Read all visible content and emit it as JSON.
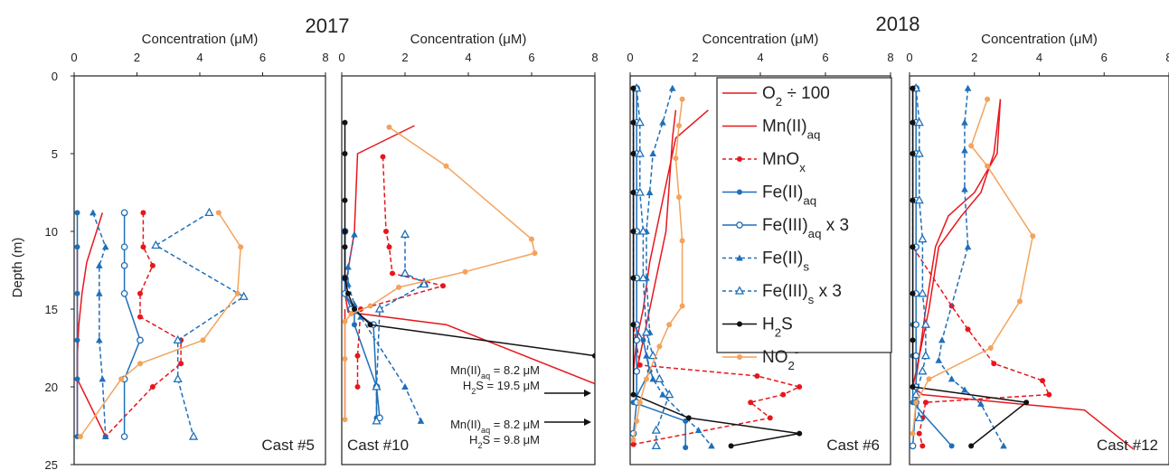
{
  "figure": {
    "years": [
      "2017",
      "2018"
    ],
    "y_axis_title": "Depth (m)",
    "x_axis_title": "Concentration (μM)",
    "sub_suffix": {
      "aq": "aq",
      "s": "s"
    }
  },
  "legend": {
    "items": [
      {
        "key": "o2",
        "base": "O",
        "sub": "2",
        "suffix": " ÷ 100",
        "color": "#e8161b",
        "dash": false,
        "marker": "none"
      },
      {
        "key": "mn",
        "base": "Mn(II)",
        "sub": "aq",
        "suffix": "",
        "color": "#e8161b",
        "dash": false,
        "marker": "none"
      },
      {
        "key": "mnox",
        "base": "MnO",
        "sub": "x",
        "suffix": "",
        "color": "#e8161b",
        "dash": true,
        "marker": "dot"
      },
      {
        "key": "fe2aq",
        "base": "Fe(II)",
        "sub": "aq",
        "suffix": "",
        "color": "#1f6fb8",
        "dash": false,
        "marker": "dot"
      },
      {
        "key": "fe3aq",
        "base": "Fe(III)",
        "sub": "aq",
        "suffix": " x 3",
        "color": "#1f6fb8",
        "dash": false,
        "marker": "opencircle"
      },
      {
        "key": "fe2s",
        "base": "Fe(II)",
        "sub": "s",
        "suffix": "",
        "color": "#1f6fb8",
        "dash": true,
        "marker": "triangle"
      },
      {
        "key": "fe3s",
        "base": "Fe(III)",
        "sub": "s",
        "suffix": " x 3",
        "color": "#1f6fb8",
        "dash": true,
        "marker": "opentriangle"
      },
      {
        "key": "h2s",
        "base": "H",
        "sub": "2",
        "suffix": "S",
        "color": "#111111",
        "dash": false,
        "marker": "dot"
      },
      {
        "key": "no2",
        "base": "NO",
        "sub": "2",
        "suffix": "",
        "sup": "-",
        "color": "#f3a35c",
        "dash": false,
        "marker": "dot"
      }
    ]
  },
  "annotations": [
    {
      "panel": 1,
      "lines": [
        [
          "Mn(II)",
          "aq",
          " = 8.2 μM"
        ],
        [
          "H",
          "2",
          "S = 19.5 μM"
        ]
      ]
    },
    {
      "panel": 1,
      "lines": [
        [
          "Mn(II)",
          "aq",
          " = 8.2 μM"
        ],
        [
          "H",
          "2",
          "S = 9.8 μM"
        ]
      ]
    }
  ],
  "chart_data": [
    {
      "type": "line",
      "cast_label": "Cast #5",
      "x_ticks": [
        "0",
        "2",
        "4",
        "6",
        "8"
      ],
      "y_ticks": [
        "0",
        "5",
        "10",
        "15",
        "20",
        "25"
      ],
      "xlim": [
        0,
        8
      ],
      "ylim": [
        0,
        25
      ],
      "series": [
        {
          "key": "o2",
          "x": [
            0.9,
            0.4,
            0.25,
            0.15,
            0.1,
            0.1,
            0.1
          ],
          "y": [
            8.8,
            12,
            14,
            16,
            18,
            20,
            23.2
          ]
        },
        {
          "key": "mn",
          "x": [
            0.1,
            0.1,
            0.1,
            0.1,
            1.0
          ],
          "y": [
            11,
            14,
            17,
            19.5,
            23.2
          ]
        },
        {
          "key": "mnox",
          "x": [
            2.2,
            2.2,
            2.5,
            2.1,
            2.1,
            3.4,
            3.4,
            2.5,
            1.0
          ],
          "y": [
            8.8,
            11,
            12.2,
            14,
            15.5,
            17,
            18.5,
            20,
            23.2
          ]
        },
        {
          "key": "fe2aq",
          "x": [
            0.1,
            0.1,
            0.1,
            0.1,
            0.1,
            0.1
          ],
          "y": [
            8.8,
            11,
            14,
            17,
            19.5,
            23.2
          ]
        },
        {
          "key": "fe3aq",
          "x": [
            1.6,
            1.6,
            1.6,
            1.6,
            2.1,
            1.6,
            1.6
          ],
          "y": [
            8.8,
            11,
            12.2,
            14,
            17,
            19.5,
            23.2
          ]
        },
        {
          "key": "fe2s",
          "x": [
            0.6,
            1.0,
            0.8,
            0.8,
            0.8,
            0.9,
            1.0
          ],
          "y": [
            8.8,
            11,
            12.2,
            14,
            17,
            19.5,
            23.2
          ]
        },
        {
          "key": "fe3s",
          "x": [
            4.3,
            2.6,
            5.4,
            3.3,
            3.3,
            3.8
          ],
          "y": [
            8.8,
            10.9,
            14.2,
            17,
            19.5,
            23.2
          ]
        },
        {
          "key": "no2",
          "x": [
            4.6,
            5.3,
            5.2,
            4.1,
            2.1,
            1.5,
            0.2
          ],
          "y": [
            8.8,
            11,
            14,
            17,
            18.5,
            19.5,
            23.2
          ]
        }
      ]
    },
    {
      "type": "line",
      "cast_label": "Cast #10",
      "x_ticks": [
        "0",
        "2",
        "4",
        "6",
        "8"
      ],
      "y_ticks": [],
      "xlim": [
        0,
        8
      ],
      "ylim": [
        0,
        25
      ],
      "series": [
        {
          "key": "o2",
          "x": [
            2.3,
            0.5,
            0.4,
            0.2,
            0.1,
            0.2,
            3.3,
            8.0
          ],
          "y": [
            3.2,
            5,
            10,
            12.5,
            14,
            15.2,
            16,
            19.8
          ]
        },
        {
          "key": "mn",
          "x": [
            0.1,
            0.1,
            0.1,
            0.1,
            0.1
          ],
          "y": [
            15,
            16,
            18,
            20,
            22
          ]
        },
        {
          "key": "mnox",
          "x": [
            1.3,
            1.4,
            1.5,
            1.6,
            3.2,
            0.6,
            0.5,
            0.5
          ],
          "y": [
            5.2,
            10,
            11,
            12.7,
            13.5,
            15,
            18,
            20
          ]
        },
        {
          "key": "fe2aq",
          "x": [
            0.1,
            0.1,
            0.1,
            0.4,
            0.4,
            1.1,
            1.1
          ],
          "y": [
            10,
            13,
            14,
            15,
            16,
            20,
            22
          ]
        },
        {
          "key": "fe3aq",
          "x": [
            0.1,
            0.1,
            0.1,
            0.3,
            1.0,
            1.1,
            1.2
          ],
          "y": [
            10,
            13,
            14,
            15,
            16,
            20,
            22
          ]
        },
        {
          "key": "fe2s",
          "x": [
            0.4,
            0.2,
            0.2,
            0.4,
            0.6,
            2.0,
            2.5
          ],
          "y": [
            10.2,
            12.3,
            13.4,
            14.7,
            15.5,
            20,
            22.2
          ]
        },
        {
          "key": "fe3s",
          "x": [
            2.0,
            2.0,
            2.6,
            2.6,
            1.2,
            1.1,
            1.1
          ],
          "y": [
            10.2,
            12.7,
            13.3,
            13.4,
            15,
            20,
            22.2
          ]
        },
        {
          "key": "h2s",
          "x": [
            0.1,
            0.1,
            0.1,
            0.1,
            0.1,
            0.1,
            0.2,
            0.4,
            0.9,
            8.0
          ],
          "y": [
            3,
            5,
            8,
            10,
            11,
            13,
            14,
            15,
            16,
            18
          ]
        },
        {
          "key": "no2",
          "x": [
            1.5,
            3.3,
            6.0,
            6.1,
            3.9,
            1.8,
            0.9,
            0.3,
            0.1,
            0.1,
            0.1
          ],
          "y": [
            3.3,
            5.8,
            10.5,
            11.4,
            12.6,
            13.6,
            14.8,
            15.3,
            15.8,
            18.2,
            22.1
          ]
        }
      ]
    },
    {
      "type": "line",
      "cast_label": "Cast #6",
      "x_ticks": [
        "0",
        "2",
        "4",
        "6",
        "8"
      ],
      "y_ticks": [],
      "xlim": [
        0,
        8
      ],
      "ylim": [
        0,
        25
      ],
      "series": [
        {
          "key": "o2",
          "x": [
            2.4,
            1.4,
            1.1,
            0.8,
            0.6,
            0.4,
            0.2,
            0.1
          ],
          "y": [
            2.2,
            4,
            7,
            10,
            12,
            15,
            17,
            19
          ]
        },
        {
          "key": "mn",
          "x": [
            1.4,
            1.3,
            1.2,
            1.1,
            0.9,
            0.6,
            0.4,
            0.2
          ],
          "y": [
            2.2,
            4,
            7,
            10,
            12,
            15,
            17,
            19
          ]
        },
        {
          "key": "mnox",
          "x": [
            0.1,
            0.1,
            0.1,
            0.1,
            0.1,
            0.1,
            0.1,
            0.3,
            3.9,
            5.2,
            4.7,
            3.7,
            4.3,
            0.1
          ],
          "y": [
            0.8,
            3,
            5,
            7.5,
            10,
            13,
            16,
            18.6,
            19.3,
            20,
            20.5,
            21,
            22,
            23.7
          ]
        },
        {
          "key": "fe2aq",
          "x": [
            0.1,
            0.1,
            0.1,
            0.1,
            0.1,
            0.1,
            0.1,
            0.4,
            0.6,
            0.1,
            1.7,
            1.7
          ],
          "y": [
            0.8,
            3,
            5,
            7.5,
            10,
            13,
            16,
            17,
            19,
            21,
            22.2,
            23.9
          ]
        },
        {
          "key": "fe3aq",
          "x": [
            0.2,
            0.2,
            0.2,
            0.2,
            0.2,
            0.2,
            0.2,
            0.2,
            0.2,
            0.2,
            0.1
          ],
          "y": [
            0.8,
            3,
            5,
            7.5,
            10,
            13,
            16,
            17,
            19,
            21,
            23
          ]
        },
        {
          "key": "fe2s",
          "x": [
            1.3,
            1.0,
            0.7,
            0.6,
            0.5,
            0.5,
            0.6,
            0.5,
            0.7,
            1.0,
            2.1,
            2.5
          ],
          "y": [
            0.8,
            3,
            5,
            7.5,
            10,
            13,
            16.5,
            18,
            19.5,
            20.5,
            22.8,
            23.8
          ]
        },
        {
          "key": "fe3s",
          "x": [
            0.2,
            0.3,
            0.3,
            0.3,
            0.4,
            0.4,
            0.5,
            0.7,
            0.9,
            1.2,
            0.8,
            0.8
          ],
          "y": [
            0.8,
            3,
            5,
            7.5,
            10,
            13,
            16.5,
            18,
            19.5,
            20.5,
            22.8,
            23.8
          ]
        },
        {
          "key": "h2s",
          "x": [
            0.1,
            0.1,
            0.1,
            0.1,
            0.1,
            0.1,
            0.1,
            0.1,
            1.8,
            5.2,
            3.1
          ],
          "y": [
            0.8,
            3,
            5,
            7.5,
            10,
            13,
            16,
            20.5,
            22,
            23,
            23.8
          ]
        },
        {
          "key": "no2",
          "x": [
            1.6,
            1.5,
            1.4,
            1.5,
            1.6,
            1.6,
            1.2,
            0.9,
            0.5,
            0.3,
            0.2,
            0.1
          ],
          "y": [
            1.5,
            3.2,
            5.3,
            7.8,
            10.6,
            14.8,
            16,
            17.4,
            19.5,
            21,
            22.2,
            23.4
          ]
        }
      ]
    },
    {
      "type": "line",
      "cast_label": "Cast #12",
      "x_ticks": [
        "0",
        "2",
        "4",
        "6",
        "8"
      ],
      "y_ticks": [],
      "xlim": [
        0,
        8
      ],
      "ylim": [
        0,
        25
      ],
      "series": [
        {
          "key": "o2",
          "x": [
            2.8,
            2.6,
            2.2,
            1.6,
            0.9,
            0.6,
            0.3,
            0.1,
            0.4,
            5.4,
            6.9
          ],
          "y": [
            1.5,
            5,
            7.5,
            9,
            11,
            15,
            18,
            20,
            20.5,
            21.5,
            24
          ]
        },
        {
          "key": "mn",
          "x": [
            2.8,
            2.7,
            2.0,
            1.2,
            0.8,
            0.5,
            0.3,
            0.2,
            0.2
          ],
          "y": [
            1.5,
            5,
            7.5,
            9,
            11,
            15,
            18,
            19.5,
            20.5
          ]
        },
        {
          "key": "mnox",
          "x": [
            0.1,
            0.1,
            0.1,
            0.1,
            0.1,
            1.3,
            1.8,
            2.6,
            4.1,
            4.3,
            0.5,
            0.4,
            0.3,
            0.4
          ],
          "y": [
            0.8,
            3,
            5,
            8,
            11,
            14.8,
            16.3,
            18.5,
            19.6,
            20.5,
            21,
            22,
            23,
            23.8
          ]
        },
        {
          "key": "fe2aq",
          "x": [
            0.1,
            0.1,
            0.1,
            0.1,
            0.1,
            0.1,
            0.1,
            0.1,
            0.1,
            0.1,
            1.3
          ],
          "y": [
            0.8,
            3,
            5,
            8,
            11,
            14,
            16,
            18,
            20,
            21,
            23.8
          ]
        },
        {
          "key": "fe3aq",
          "x": [
            0.2,
            0.2,
            0.2,
            0.2,
            0.2,
            0.2,
            0.2,
            0.2,
            0.2,
            0.2,
            0.1
          ],
          "y": [
            0.8,
            3,
            5,
            8,
            11,
            14,
            16,
            18,
            20,
            21,
            23.8
          ]
        },
        {
          "key": "fe2s",
          "x": [
            1.8,
            1.7,
            1.7,
            1.7,
            1.8,
            1.0,
            0.9,
            1.3,
            1.7,
            2.2,
            2.9
          ],
          "y": [
            0.8,
            3,
            4.8,
            7.3,
            11,
            17,
            18.3,
            19.5,
            20.2,
            21.1,
            23.8
          ]
        },
        {
          "key": "fe3s",
          "x": [
            0.2,
            0.3,
            0.3,
            0.3,
            0.4,
            0.4,
            0.5,
            0.5,
            0.4,
            0.2,
            0.3
          ],
          "y": [
            0.8,
            3,
            5,
            8,
            10.5,
            14,
            16,
            18,
            19,
            20.5,
            22
          ]
        },
        {
          "key": "h2s",
          "x": [
            0.1,
            0.1,
            0.1,
            0.1,
            0.1,
            0.1,
            0.1,
            0.1,
            3.6,
            1.9
          ],
          "y": [
            0.8,
            3,
            5,
            8,
            11,
            14,
            17,
            20,
            21,
            23.8
          ]
        },
        {
          "key": "no2",
          "x": [
            2.4,
            1.9,
            2.4,
            3.8,
            3.4,
            2.5,
            0.6,
            0.2,
            0.1
          ],
          "y": [
            1.5,
            4.5,
            5.8,
            10.3,
            14.5,
            17.5,
            19.5,
            21,
            23
          ]
        }
      ]
    }
  ]
}
